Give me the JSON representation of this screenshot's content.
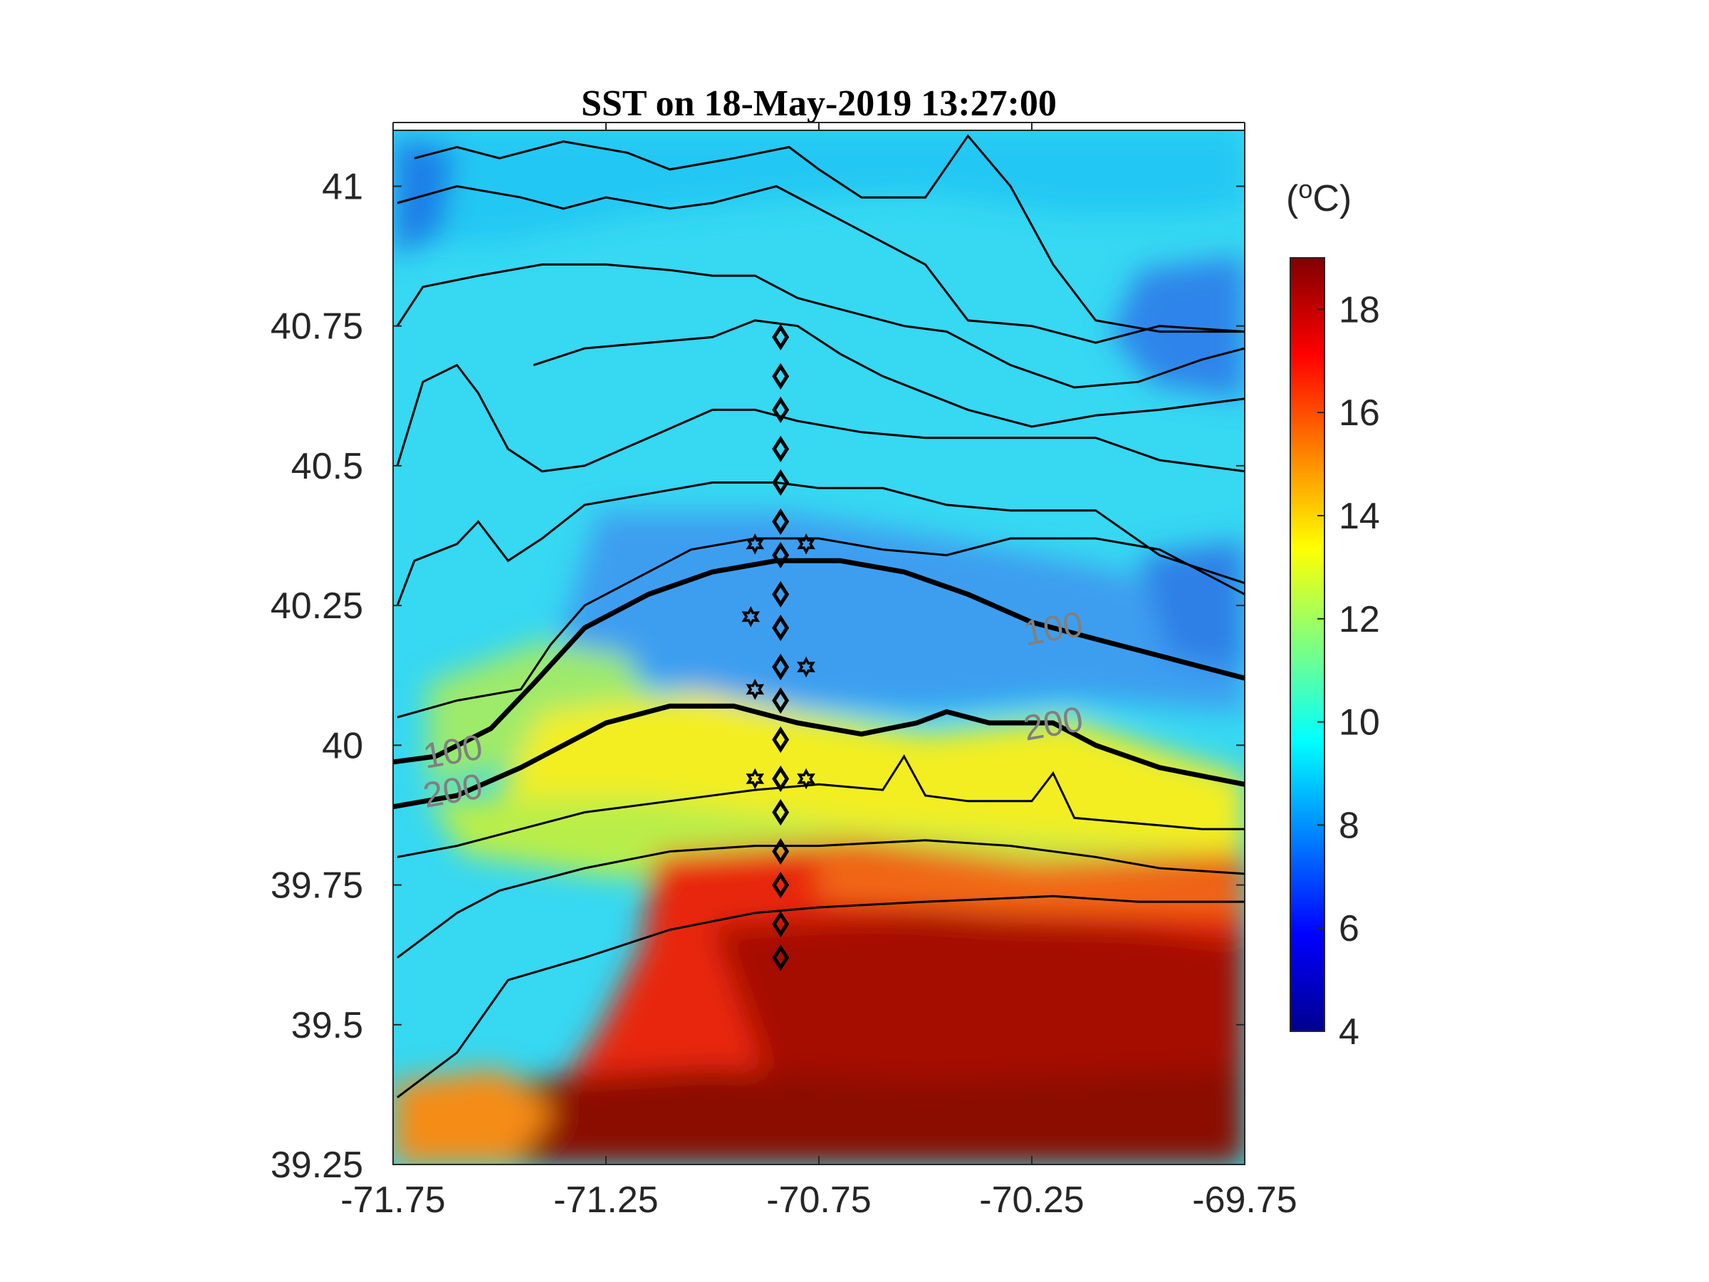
{
  "chart_data": {
    "type": "heatmap",
    "title": "SST on 18-May-2019 13:27:00",
    "colorbar": {
      "unit_label": "(oC)",
      "range": [
        4,
        19
      ],
      "ticks": [
        4,
        6,
        8,
        10,
        12,
        14,
        16,
        18
      ],
      "colormap": "jet"
    },
    "x_axis": {
      "range": [
        -71.75,
        -69.75
      ],
      "tick_labels": [
        "-71.75",
        "-71.25",
        "-70.75",
        "-70.25",
        "-69.75"
      ],
      "tick_values": [
        -71.75,
        -71.25,
        -70.75,
        -70.25,
        -69.75
      ]
    },
    "y_axis": {
      "range": [
        39.25,
        41.1
      ],
      "tick_labels": [
        "39.25",
        "39.5",
        "39.75",
        "40",
        "40.25",
        "40.5",
        "40.75",
        "41"
      ],
      "tick_values": [
        39.25,
        39.5,
        39.75,
        40.0,
        40.25,
        40.5,
        40.75,
        41.0
      ]
    },
    "contour_labels": [
      {
        "text": "100",
        "lon": -71.61,
        "lat": 39.99
      },
      {
        "text": "200",
        "lon": -71.61,
        "lat": 39.92
      },
      {
        "text": "100",
        "lon": -70.2,
        "lat": 40.21
      },
      {
        "text": "200",
        "lon": -70.2,
        "lat": 40.04
      }
    ],
    "highlighted_isobaths": [
      {
        "label": "100",
        "points": [
          [
            -71.75,
            39.97
          ],
          [
            -71.65,
            39.98
          ],
          [
            -71.52,
            40.03
          ],
          [
            -71.42,
            40.11
          ],
          [
            -71.3,
            40.21
          ],
          [
            -71.15,
            40.27
          ],
          [
            -71.0,
            40.31
          ],
          [
            -70.85,
            40.33
          ],
          [
            -70.7,
            40.33
          ],
          [
            -70.55,
            40.31
          ],
          [
            -70.4,
            40.27
          ],
          [
            -70.25,
            40.22
          ],
          [
            -70.1,
            40.19
          ],
          [
            -69.95,
            40.16
          ],
          [
            -69.75,
            40.12
          ]
        ]
      },
      {
        "label": "200",
        "points": [
          [
            -71.75,
            39.89
          ],
          [
            -71.6,
            39.91
          ],
          [
            -71.45,
            39.96
          ],
          [
            -71.35,
            40.0
          ],
          [
            -71.25,
            40.04
          ],
          [
            -71.1,
            40.07
          ],
          [
            -70.95,
            40.07
          ],
          [
            -70.8,
            40.04
          ],
          [
            -70.65,
            40.02
          ],
          [
            -70.52,
            40.04
          ],
          [
            -70.45,
            40.06
          ],
          [
            -70.35,
            40.04
          ],
          [
            -70.2,
            40.04
          ],
          [
            -70.1,
            40.0
          ],
          [
            -69.95,
            39.96
          ],
          [
            -69.75,
            39.93
          ]
        ]
      }
    ],
    "isobaths": [
      [
        [
          -71.74,
          39.37
        ],
        [
          -71.6,
          39.45
        ],
        [
          -71.48,
          39.58
        ],
        [
          -71.3,
          39.62
        ],
        [
          -71.1,
          39.67
        ],
        [
          -70.9,
          39.7
        ],
        [
          -70.75,
          39.71
        ],
        [
          -70.5,
          39.72
        ],
        [
          -70.2,
          39.73
        ],
        [
          -70.0,
          39.72
        ],
        [
          -69.75,
          39.72
        ]
      ],
      [
        [
          -71.74,
          39.62
        ],
        [
          -71.6,
          39.7
        ],
        [
          -71.5,
          39.74
        ],
        [
          -71.3,
          39.78
        ],
        [
          -71.1,
          39.81
        ],
        [
          -70.9,
          39.82
        ],
        [
          -70.75,
          39.82
        ],
        [
          -70.5,
          39.83
        ],
        [
          -70.3,
          39.82
        ],
        [
          -70.1,
          39.8
        ],
        [
          -69.95,
          39.78
        ],
        [
          -69.75,
          39.77
        ]
      ],
      [
        [
          -71.74,
          39.8
        ],
        [
          -71.6,
          39.82
        ],
        [
          -71.45,
          39.85
        ],
        [
          -71.3,
          39.88
        ],
        [
          -71.1,
          39.9
        ],
        [
          -70.9,
          39.92
        ],
        [
          -70.75,
          39.93
        ],
        [
          -70.6,
          39.92
        ],
        [
          -70.55,
          39.98
        ],
        [
          -70.5,
          39.91
        ],
        [
          -70.4,
          39.9
        ],
        [
          -70.25,
          39.9
        ],
        [
          -70.2,
          39.95
        ],
        [
          -70.15,
          39.87
        ],
        [
          -70.0,
          39.86
        ],
        [
          -69.85,
          39.85
        ],
        [
          -69.75,
          39.85
        ]
      ],
      [
        [
          -71.74,
          40.05
        ],
        [
          -71.6,
          40.08
        ],
        [
          -71.45,
          40.1
        ],
        [
          -71.38,
          40.18
        ],
        [
          -71.3,
          40.25
        ],
        [
          -71.2,
          40.29
        ],
        [
          -71.05,
          40.35
        ],
        [
          -70.9,
          40.37
        ],
        [
          -70.75,
          40.37
        ],
        [
          -70.6,
          40.35
        ],
        [
          -70.45,
          40.34
        ],
        [
          -70.3,
          40.37
        ],
        [
          -70.1,
          40.37
        ],
        [
          -69.95,
          40.35
        ],
        [
          -69.75,
          40.27
        ]
      ],
      [
        [
          -71.74,
          40.25
        ],
        [
          -71.7,
          40.33
        ],
        [
          -71.6,
          40.36
        ],
        [
          -71.55,
          40.4
        ],
        [
          -71.48,
          40.33
        ],
        [
          -71.4,
          40.37
        ],
        [
          -71.3,
          40.43
        ],
        [
          -71.15,
          40.45
        ],
        [
          -71.0,
          40.47
        ],
        [
          -70.85,
          40.47
        ],
        [
          -70.75,
          40.46
        ],
        [
          -70.6,
          40.46
        ],
        [
          -70.45,
          40.43
        ],
        [
          -70.3,
          40.42
        ],
        [
          -70.1,
          40.42
        ],
        [
          -69.95,
          40.34
        ],
        [
          -69.75,
          40.29
        ]
      ],
      [
        [
          -71.74,
          40.5
        ],
        [
          -71.68,
          40.65
        ],
        [
          -71.6,
          40.68
        ],
        [
          -71.55,
          40.63
        ],
        [
          -71.48,
          40.53
        ],
        [
          -71.4,
          40.49
        ],
        [
          -71.3,
          40.5
        ],
        [
          -71.15,
          40.55
        ],
        [
          -71.0,
          40.6
        ],
        [
          -70.9,
          40.6
        ],
        [
          -70.8,
          40.58
        ],
        [
          -70.65,
          40.56
        ],
        [
          -70.5,
          40.55
        ],
        [
          -70.3,
          40.55
        ],
        [
          -70.1,
          40.55
        ],
        [
          -69.95,
          40.51
        ],
        [
          -69.75,
          40.49
        ]
      ],
      [
        [
          -71.42,
          40.68
        ],
        [
          -71.3,
          40.71
        ],
        [
          -71.15,
          40.72
        ],
        [
          -71.0,
          40.73
        ],
        [
          -70.9,
          40.76
        ],
        [
          -70.8,
          40.75
        ],
        [
          -70.7,
          40.7
        ],
        [
          -70.6,
          40.66
        ],
        [
          -70.4,
          40.6
        ],
        [
          -70.25,
          40.57
        ],
        [
          -70.1,
          40.59
        ],
        [
          -69.95,
          40.6
        ],
        [
          -69.75,
          40.62
        ]
      ],
      [
        [
          -71.74,
          40.75
        ],
        [
          -71.68,
          40.82
        ],
        [
          -71.55,
          40.84
        ],
        [
          -71.4,
          40.86
        ],
        [
          -71.25,
          40.86
        ],
        [
          -71.1,
          40.85
        ],
        [
          -71.0,
          40.84
        ],
        [
          -70.9,
          40.84
        ],
        [
          -70.8,
          40.8
        ],
        [
          -70.7,
          40.78
        ],
        [
          -70.55,
          40.75
        ],
        [
          -70.45,
          40.74
        ],
        [
          -70.3,
          40.68
        ],
        [
          -70.15,
          40.64
        ],
        [
          -70.0,
          40.65
        ],
        [
          -69.85,
          40.69
        ],
        [
          -69.75,
          40.71
        ]
      ],
      [
        [
          -71.74,
          40.97
        ],
        [
          -71.6,
          41.0
        ],
        [
          -71.45,
          40.98
        ],
        [
          -71.35,
          40.96
        ],
        [
          -71.25,
          40.98
        ],
        [
          -71.1,
          40.96
        ],
        [
          -71.0,
          40.97
        ],
        [
          -70.85,
          41.0
        ],
        [
          -70.75,
          40.96
        ],
        [
          -70.65,
          40.92
        ],
        [
          -70.5,
          40.86
        ],
        [
          -70.4,
          40.76
        ],
        [
          -70.25,
          40.75
        ],
        [
          -70.1,
          40.72
        ],
        [
          -69.95,
          40.75
        ],
        [
          -69.75,
          40.74
        ]
      ],
      [
        [
          -71.7,
          41.05
        ],
        [
          -71.6,
          41.07
        ],
        [
          -71.5,
          41.05
        ],
        [
          -71.35,
          41.08
        ],
        [
          -71.2,
          41.06
        ],
        [
          -71.1,
          41.03
        ],
        [
          -70.95,
          41.05
        ],
        [
          -70.82,
          41.07
        ],
        [
          -70.75,
          41.03
        ],
        [
          -70.65,
          40.98
        ],
        [
          -70.5,
          40.98
        ],
        [
          -70.4,
          41.09
        ],
        [
          -70.3,
          41.0
        ],
        [
          -70.2,
          40.86
        ],
        [
          -70.1,
          40.76
        ],
        [
          -69.95,
          40.74
        ],
        [
          -69.75,
          40.74
        ]
      ]
    ],
    "transect_diamonds": [
      {
        "lon": -70.84,
        "lat": 40.73
      },
      {
        "lon": -70.84,
        "lat": 40.66
      },
      {
        "lon": -70.84,
        "lat": 40.6
      },
      {
        "lon": -70.84,
        "lat": 40.53
      },
      {
        "lon": -70.84,
        "lat": 40.47
      },
      {
        "lon": -70.84,
        "lat": 40.4
      },
      {
        "lon": -70.84,
        "lat": 40.34
      },
      {
        "lon": -70.84,
        "lat": 40.27
      },
      {
        "lon": -70.84,
        "lat": 40.21
      },
      {
        "lon": -70.84,
        "lat": 40.14
      },
      {
        "lon": -70.84,
        "lat": 40.08
      },
      {
        "lon": -70.84,
        "lat": 40.01
      },
      {
        "lon": -70.84,
        "lat": 39.94
      },
      {
        "lon": -70.84,
        "lat": 39.88
      },
      {
        "lon": -70.84,
        "lat": 39.81
      },
      {
        "lon": -70.84,
        "lat": 39.75
      },
      {
        "lon": -70.84,
        "lat": 39.68
      },
      {
        "lon": -70.84,
        "lat": 39.62
      }
    ],
    "mooring_stars": [
      {
        "lon": -70.9,
        "lat": 40.36
      },
      {
        "lon": -70.78,
        "lat": 40.36
      },
      {
        "lon": -70.91,
        "lat": 40.23
      },
      {
        "lon": -70.78,
        "lat": 40.14
      },
      {
        "lon": -70.9,
        "lat": 40.1
      },
      {
        "lon": -70.9,
        "lat": 39.94
      },
      {
        "lon": -70.78,
        "lat": 39.94
      }
    ]
  }
}
